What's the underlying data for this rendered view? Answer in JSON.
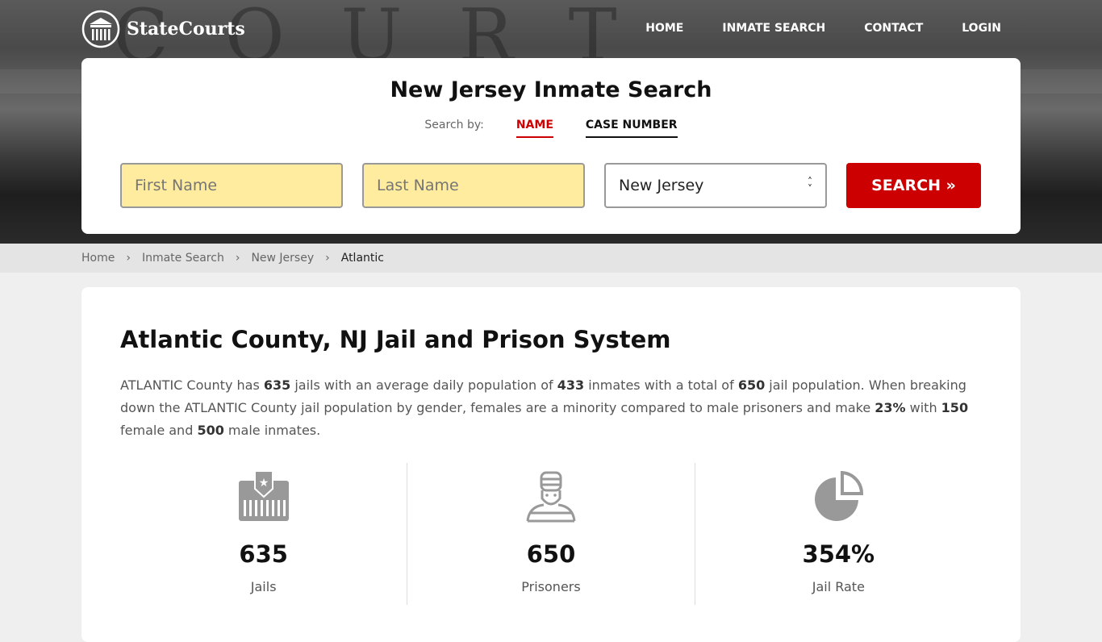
{
  "header": {
    "brand": "StateCourts",
    "nav": [
      "HOME",
      "INMATE SEARCH",
      "CONTACT",
      "LOGIN"
    ],
    "background_text": "COURT HOUSE"
  },
  "search": {
    "title": "New Jersey Inmate Search",
    "search_by": "Search by:",
    "tabs": [
      "NAME",
      "CASE NUMBER"
    ],
    "first_name_placeholder": "First Name",
    "last_name_placeholder": "Last Name",
    "state": "New Jersey",
    "button": "SEARCH »",
    "accent": "#cc0000"
  },
  "breadcrumb": [
    "Home",
    "Inmate Search",
    "New Jersey",
    "Atlantic"
  ],
  "main": {
    "title": "Atlantic County, NJ Jail and Prison System",
    "p": [
      "ATLANTIC County has ",
      "635",
      " jails with an average daily population of ",
      "433",
      " inmates with a total of ",
      "650",
      " jail population. When breaking down the ATLANTIC County jail population by gender, females are a minority compared to male prisoners and make ",
      "23%",
      " with ",
      "150",
      " female and ",
      "500",
      " male inmates."
    ],
    "stats": [
      {
        "icon": "jail-icon",
        "value": "635",
        "label": "Jails"
      },
      {
        "icon": "prisoner-icon",
        "value": "650",
        "label": "Prisoners"
      },
      {
        "icon": "pie-chart-icon",
        "value": "354%",
        "label": "Jail Rate"
      }
    ]
  }
}
